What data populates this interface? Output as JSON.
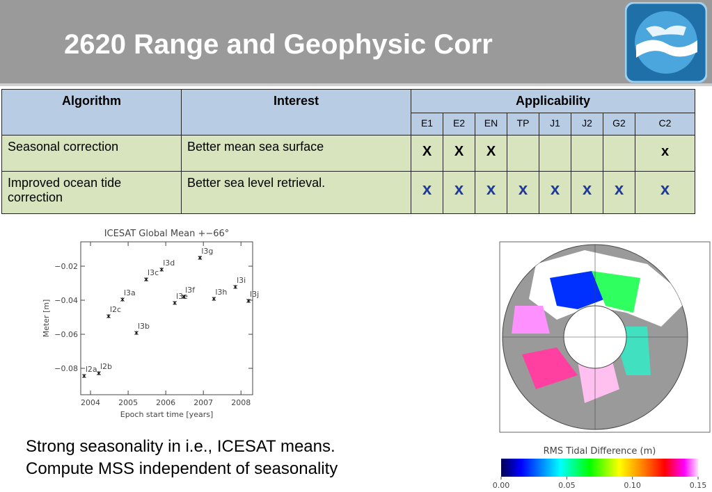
{
  "header": {
    "title": "2620 Range and Geophysic Corr"
  },
  "table": {
    "headers": [
      "Algorithm",
      "Interest",
      "Applicability"
    ],
    "subheaders": [
      "E1",
      "E2",
      "EN",
      "TP",
      "J1",
      "J2",
      "G2",
      "C2"
    ],
    "rows": [
      {
        "algorithm": "Seasonal correction",
        "interest": "Better mean sea surface",
        "marks": [
          "X",
          "X",
          "X",
          null,
          null,
          null,
          null,
          "x"
        ]
      },
      {
        "algorithm": "Improved ocean tide correction",
        "interest": "Better sea level retrieval.",
        "marks": [
          "x",
          "x",
          "x",
          "x",
          "x",
          "x",
          "x",
          "x"
        ]
      }
    ]
  },
  "chart_data": {
    "type": "scatter",
    "title": "ICESAT Global Mean +−66°",
    "xlabel": "Epoch start time [years]",
    "ylabel": "Meter [m]",
    "x": [
      2003.83,
      2004.22,
      2004.48,
      2004.85,
      2005.22,
      2005.48,
      2005.89,
      2006.24,
      2006.48,
      2006.91,
      2007.28,
      2007.85,
      2008.2
    ],
    "values": [
      -0.0845,
      -0.0829,
      -0.0494,
      -0.0396,
      -0.0592,
      -0.0278,
      -0.022,
      -0.0416,
      -0.038,
      -0.0151,
      -0.0392,
      -0.0322,
      -0.0404
    ],
    "point_labels": [
      "l2a",
      "l2b",
      "l2c",
      "l3a",
      "l3b",
      "l3c",
      "l3d",
      "l3e",
      "l3f",
      "l3g",
      "l3h",
      "l3i",
      "l3j"
    ],
    "xlim": [
      2003.74,
      2008.31
    ],
    "ylim": [
      -0.0955,
      -0.0057
    ],
    "xticks": [
      2004,
      2005,
      2006,
      2007,
      2008
    ],
    "yticks": [
      {
        "value": -0.02,
        "label": "−0.02"
      },
      {
        "value": -0.04,
        "label": "−0.04"
      },
      {
        "value": -0.06,
        "label": "−0.06"
      },
      {
        "value": -0.08,
        "label": "−0.08"
      }
    ],
    "color": "#000000"
  },
  "colorbar": {
    "title": "RMS Tidal Difference (m)",
    "lim": [
      0,
      0.15
    ],
    "ticks": [
      {
        "value": 0,
        "label": "0.00"
      },
      {
        "value": 0.05,
        "label": "0.05"
      },
      {
        "value": 0.1,
        "label": "0.10"
      },
      {
        "value": 0.15,
        "label": "0.15"
      }
    ]
  },
  "caption": [
    "Strong seasonality in i.e., ICESAT means.",
    "Compute MSS independent of seasonality"
  ]
}
